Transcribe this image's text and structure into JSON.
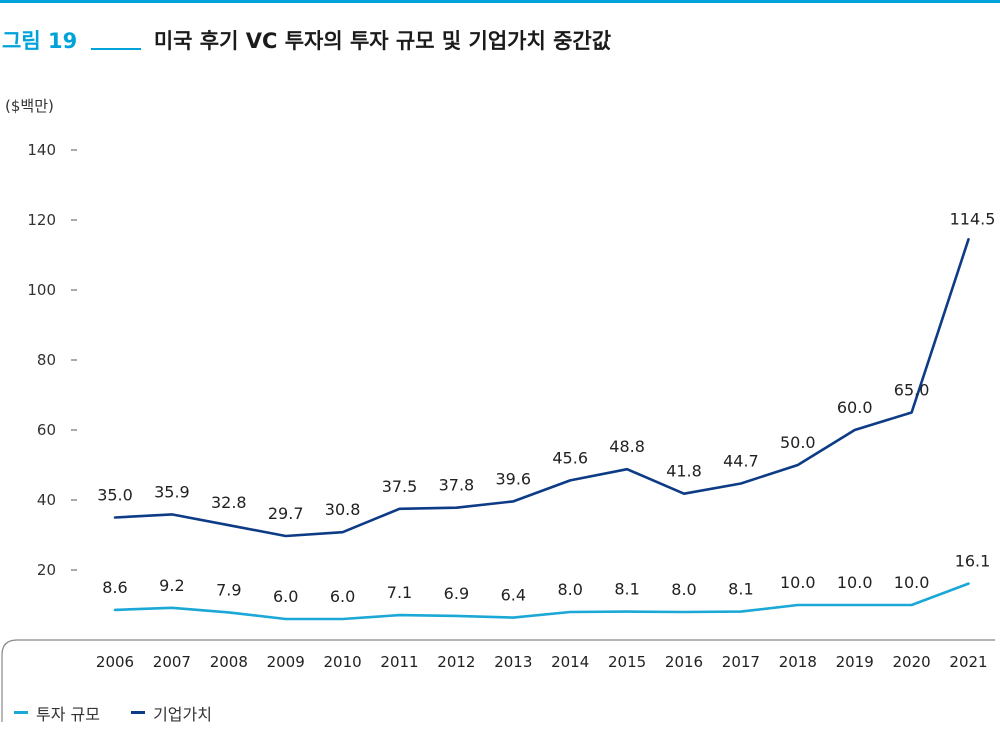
{
  "header": {
    "figure_label": "그림 19",
    "title": "미국 후기 VC 투자의 투자 규모 및 기업가치 중간값"
  },
  "colors": {
    "accent": "#00a3d9",
    "top_rule": "#00a3d9",
    "series_investment": "#1ba8d6",
    "series_valuation": "#0d3b85",
    "axis": "#555555",
    "frame": "#888888"
  },
  "chart_data": {
    "type": "line",
    "title": "미국 후기 VC 투자의 투자 규모 및 기업가치 중간값",
    "ylabel": "($백만)",
    "xlabel": "",
    "x": [
      "2006",
      "2007",
      "2008",
      "2009",
      "2010",
      "2011",
      "2012",
      "2013",
      "2014",
      "2015",
      "2016",
      "2017",
      "2018",
      "2019",
      "2020",
      "2021"
    ],
    "ylim": [
      0,
      140
    ],
    "yticks": [
      20,
      40,
      60,
      80,
      100,
      120,
      140
    ],
    "grid": false,
    "legend_position": "bottom-left",
    "series": [
      {
        "name": "투자 규모",
        "values": [
          8.6,
          9.2,
          7.9,
          6.0,
          6.0,
          7.1,
          6.9,
          6.4,
          8.0,
          8.1,
          8.0,
          8.1,
          10.0,
          10.0,
          10.0,
          16.1
        ],
        "labels": [
          "8.6",
          "9.2",
          "7.9",
          "6.0",
          "6.0",
          "7.1",
          "6.9",
          "6.4",
          "8.0",
          "8.1",
          "8.0",
          "8.1",
          "10.0",
          "10.0",
          "10.0",
          "16.1"
        ]
      },
      {
        "name": "기업가치",
        "values": [
          35.0,
          35.9,
          32.8,
          29.7,
          30.8,
          37.5,
          37.8,
          39.6,
          45.6,
          48.8,
          41.8,
          44.7,
          50.0,
          60.0,
          65.0,
          114.5
        ],
        "labels": [
          "35.0",
          "35.9",
          "32.8",
          "29.7",
          "30.8",
          "37.5",
          "37.8",
          "39.6",
          "45.6",
          "48.8",
          "41.8",
          "44.7",
          "50.0",
          "60.0",
          "65.0",
          "114.5"
        ]
      }
    ]
  }
}
